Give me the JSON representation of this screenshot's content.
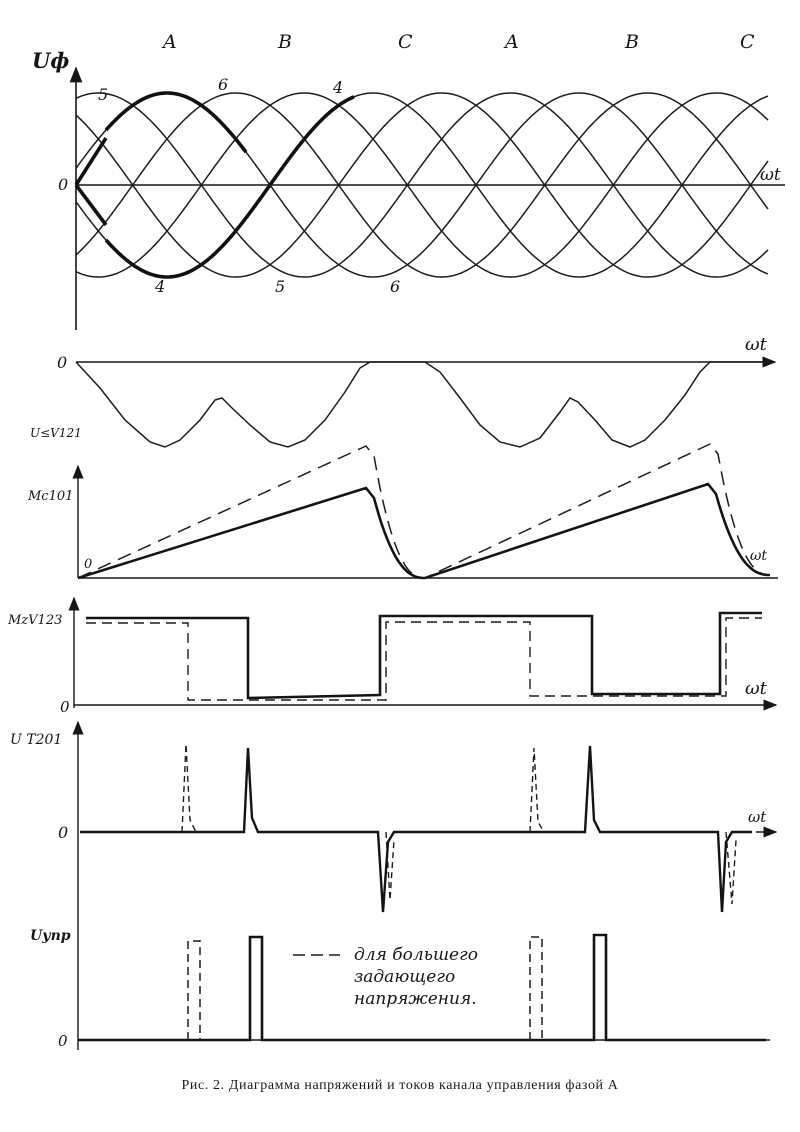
{
  "panel1": {
    "y_label": "Uф",
    "x_label": "ωt",
    "zero_label": "0",
    "phase_labels": [
      "A",
      "B",
      "C",
      "A",
      "B",
      "C"
    ],
    "curve_numbers": [
      "5",
      "6",
      "4",
      "4",
      "5",
      "6"
    ]
  },
  "panel2": {
    "zero_label": "0",
    "x_label": "ωt",
    "y_label": "U≤V121"
  },
  "panel3": {
    "y_label": "Mc101",
    "zero_label": "0",
    "x_label": "ωt"
  },
  "panel4": {
    "y_label": "MzV123",
    "zero_label": "0",
    "x_label": "ωt"
  },
  "panel5": {
    "y_label": "U T201",
    "zero_label": "0",
    "x_label": "ωt"
  },
  "panel6": {
    "y_label": "Uупр",
    "zero_label": "0",
    "legend_lines": [
      "для большего",
      "задающего",
      "напряжения."
    ]
  },
  "caption": "Рис. 2. Диаграмма напряжений и токов канала управления фазой А"
}
